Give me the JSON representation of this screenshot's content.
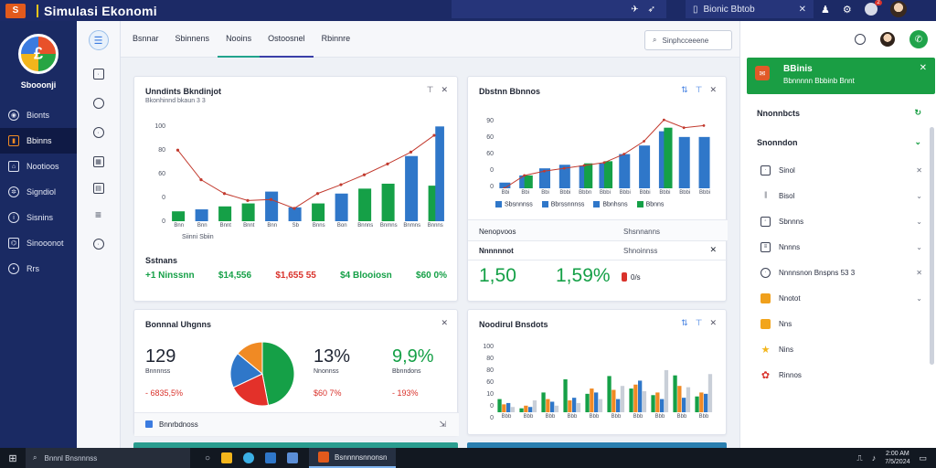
{
  "topbar": {
    "app_title": "Simulasi Ekonomi",
    "center_icons": [
      "plane-icon",
      "rocket-icon"
    ],
    "workspace_label": "Bionic Bbtob",
    "notification_count": "2"
  },
  "sidebar": {
    "brand_name": "Sbooonji",
    "items": [
      {
        "label": "Bionts",
        "icon": "globe-icon"
      },
      {
        "label": "Bbinns",
        "icon": "chart-icon"
      },
      {
        "label": "Nootioos",
        "icon": "bank-icon"
      },
      {
        "label": "Signdiol",
        "icon": "settings-icon"
      },
      {
        "label": "Sisnins",
        "icon": "info-icon"
      },
      {
        "label": "Sinooonot",
        "icon": "network-icon"
      },
      {
        "label": "Rrs",
        "icon": "user-icon"
      }
    ]
  },
  "tabs": [
    "Bsnnar",
    "Sbinnens",
    "Nooins",
    "Ostoosnel",
    "Rbinnre"
  ],
  "search_placeholder": "Sinphcceeene",
  "card1": {
    "title": "Unndints Bkndinjot",
    "subtitle": "Bkonhinnd bkaun 3 3",
    "section_label": "Sstnans",
    "metrics": [
      {
        "value": "+1 Ninssnn",
        "color": "green"
      },
      {
        "value": "$14,556",
        "color": "green"
      },
      {
        "value": "$1,655 55",
        "color": "red"
      },
      {
        "value": "$4 Blooiosn",
        "color": "green"
      },
      {
        "value": "$60 0%",
        "color": "green"
      }
    ],
    "x_footer": "Siinni Sbiin"
  },
  "card2": {
    "title": "Dbstnn Bbnnos",
    "footer_left": "Nenopvoos",
    "footer_right": "Shsnnanns",
    "row_label": "Nnnnnnot",
    "row_right": "Shnoinnss",
    "big_left": "1,50",
    "big_mid": "1,59%",
    "badge_label": "0/s"
  },
  "card3": {
    "title": "Bonnnal Uhgnns",
    "stats": [
      {
        "big": "129",
        "label": "Bnnnnss",
        "delta": "- 6835,5%",
        "delta_color": "red"
      },
      {
        "big": "13%",
        "label": "Nnonnss",
        "delta": "$60 7%",
        "delta_color": "red"
      },
      {
        "big": "9,9%",
        "label": "Bbnndons",
        "delta": "- 193%",
        "delta_color": "red"
      }
    ],
    "footer": "Bnnrbdnoss"
  },
  "card4": {
    "title": "Noodirul Bnsdots"
  },
  "rpanel": {
    "toast_title": "BBinis",
    "toast_text": "Bbnnnnn Bbbinb Bnnt",
    "section1": "Nnonnbcts",
    "section2": "Snonndon",
    "items": [
      {
        "label": "Sinol",
        "icon": "square-icon"
      },
      {
        "label": "Bisol",
        "icon": "bars-icon"
      },
      {
        "label": "Sbnnns",
        "icon": "image-icon"
      },
      {
        "label": "Nnnns",
        "icon": "doc-icon"
      },
      {
        "label": "Nnnnsnon Bnspns 53 3",
        "icon": "clock-icon"
      },
      {
        "label": "Nnotot",
        "icon": "orange-box-icon"
      },
      {
        "label": "Nns",
        "icon": "yellow-box-icon"
      },
      {
        "label": "Nins",
        "icon": "star-icon"
      },
      {
        "label": "Rinnos",
        "icon": "red-flower-icon"
      }
    ]
  },
  "taskbar": {
    "search_placeholder": "Bnnnl Bnsnnnss",
    "window_label": "Bsnnnnsnnonsn",
    "time": "2:00 AM",
    "date": "7/5/2024"
  },
  "chart_data": [
    {
      "type": "bar",
      "title": "Unndints Bkndinjot",
      "ylim": [
        0,
        100
      ],
      "yticks": [
        "100",
        "80",
        "60",
        "0",
        "0"
      ],
      "x_labels": [
        "Bnn",
        "Bnn",
        "Bnnt",
        "Bnnt",
        "Bnn",
        "Sb",
        "Bnns",
        "Bon",
        "Bnnns",
        "Bnmns",
        "Bnmns",
        "Bnnns"
      ],
      "series": [
        {
          "values": [
            10,
            12,
            15,
            18,
            30,
            14,
            18,
            28,
            33,
            38,
            66,
            36
          ]
        },
        {
          "values": [
            0,
            0,
            0,
            0,
            0,
            0,
            0,
            0,
            0,
            0,
            0,
            96
          ]
        }
      ],
      "line": [
        72,
        42,
        28,
        21,
        22,
        13,
        28,
        37,
        47,
        58,
        70,
        87
      ]
    },
    {
      "type": "bar",
      "title": "Dbstnn Bbnnos",
      "ylim": [
        0,
        100
      ],
      "yticks": [
        "90",
        "60",
        "60",
        "0",
        "0"
      ],
      "x_labels": [
        "Bbi",
        "Bbi",
        "Bbi",
        "Bbbi",
        "Bbbn",
        "Bbbi",
        "Bbbi",
        "Bbbi",
        "Bbbi",
        "Bbbi",
        "Bbbi"
      ],
      "series": [
        {
          "values": [
            8,
            18,
            28,
            33,
            32,
            35,
            48,
            60,
            80,
            72,
            72
          ]
        },
        {
          "values": [
            0,
            18,
            0,
            0,
            35,
            38,
            0,
            0,
            85,
            0,
            0
          ]
        }
      ],
      "line": [
        0,
        18,
        24,
        28,
        32,
        36,
        48,
        66,
        96,
        85,
        88
      ],
      "legend": [
        "Sbsnnnss",
        "Bbrssnnnss",
        "Bbnhsns",
        "Bbnns"
      ]
    },
    {
      "type": "pie",
      "slices": [
        {
          "value": 47,
          "color": "#15a047"
        },
        {
          "value": 21,
          "color": "#e3312a"
        },
        {
          "value": 18,
          "color": "#2f77c9"
        },
        {
          "value": 14,
          "color": "#f08a24"
        }
      ]
    },
    {
      "type": "bar",
      "title": "Noodirul Bnsdots",
      "ylim": [
        0,
        100
      ],
      "yticks": [
        "100",
        "80",
        "80",
        "60",
        "10",
        "0",
        "0"
      ],
      "x_labels": [
        "Bbb",
        "Bbb",
        "Bbb",
        "Bbb",
        "Bbb",
        "Bbb",
        "Bbb",
        "Bbb",
        "Bbb",
        "Bbb"
      ],
      "groups": [
        [
          20,
          12,
          14,
          8
        ],
        [
          6,
          10,
          8,
          18
        ],
        [
          30,
          20,
          16,
          10
        ],
        [
          50,
          18,
          22,
          14
        ],
        [
          28,
          36,
          30,
          20
        ],
        [
          55,
          34,
          20,
          40
        ],
        [
          36,
          42,
          48,
          32
        ],
        [
          26,
          30,
          20,
          64
        ],
        [
          56,
          40,
          22,
          38
        ],
        [
          24,
          30,
          28,
          58
        ]
      ],
      "colors": [
        "#15a047",
        "#f08a24",
        "#2f77c9",
        "#c9cfd8"
      ]
    }
  ]
}
